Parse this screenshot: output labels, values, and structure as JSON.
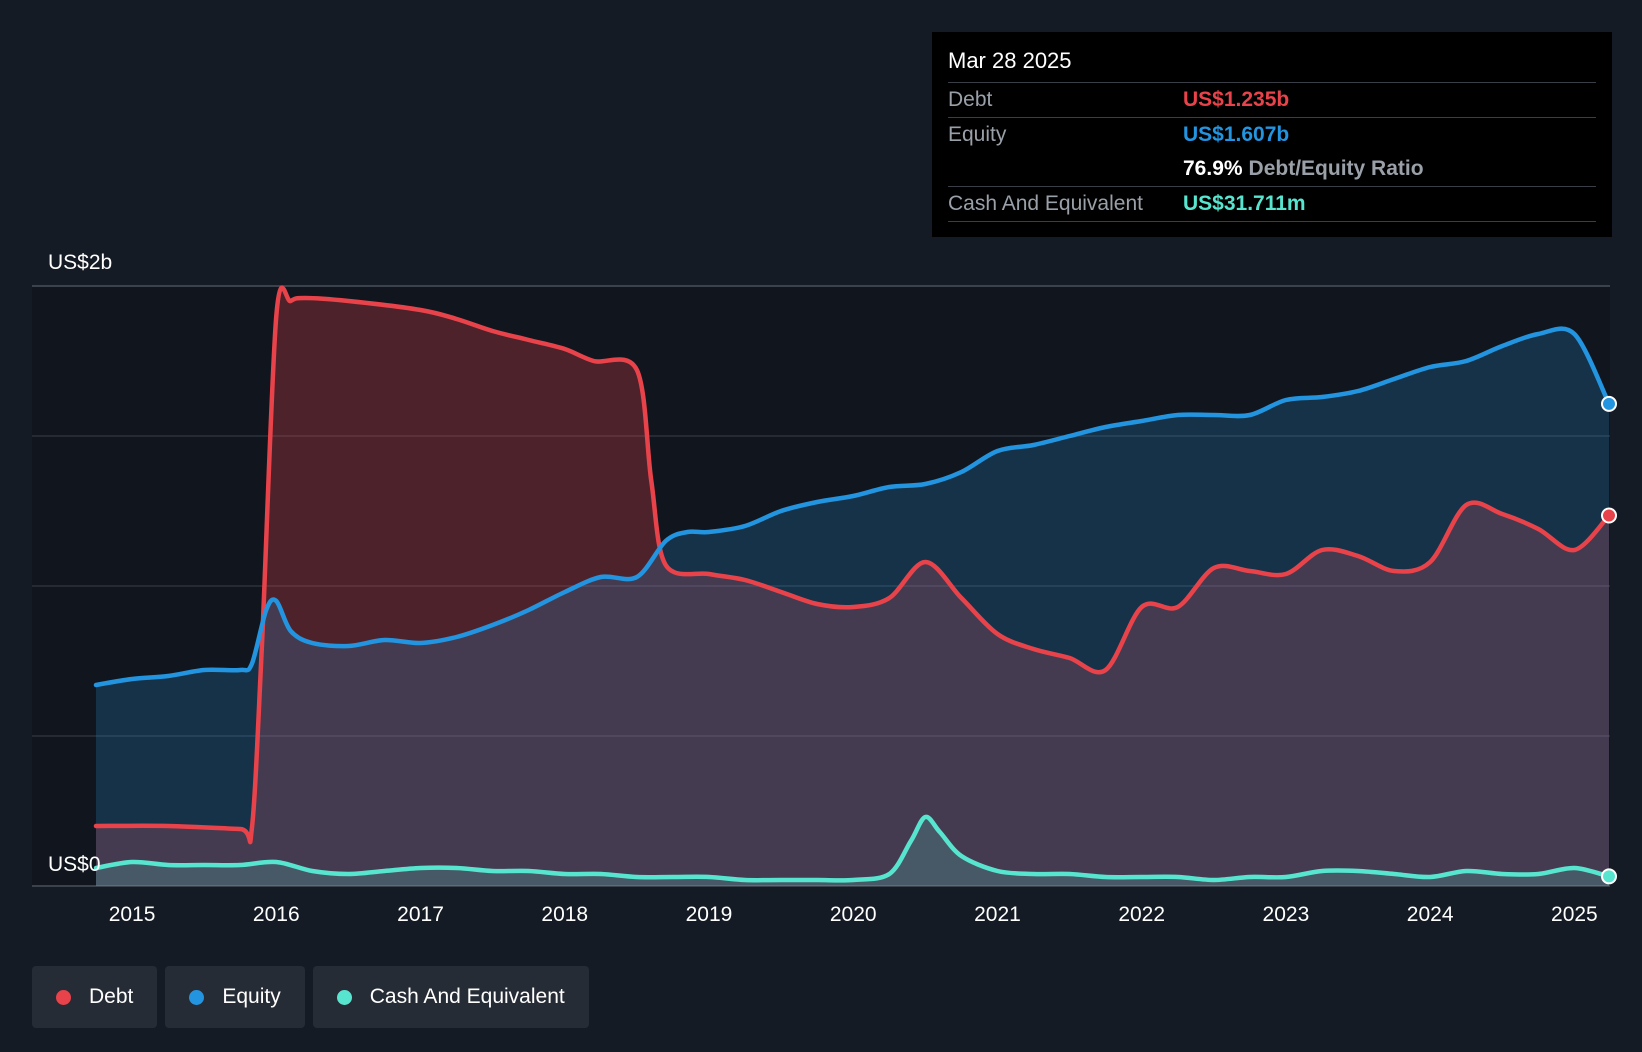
{
  "tooltip": {
    "date": "Mar 28 2025",
    "debt_label": "Debt",
    "debt_value": "US$1.235b",
    "equity_label": "Equity",
    "equity_value": "US$1.607b",
    "ratio_value": "76.9%",
    "ratio_label": "Debt/Equity Ratio",
    "cash_label": "Cash And Equivalent",
    "cash_value": "US$31.711m"
  },
  "legend": {
    "debt": "Debt",
    "equity": "Equity",
    "cash": "Cash And Equivalent"
  },
  "colors": {
    "debt": "#e8434a",
    "equity": "#2394df",
    "cash": "#58e5cf"
  },
  "chart_data": {
    "type": "area",
    "ylabel_top": "US$2b",
    "ylabel_bottom": "US$0",
    "ylim": [
      0,
      2
    ],
    "y_unit": "billion USD",
    "xlim": [
      2014.75,
      2025.24
    ],
    "x_ticks": [
      "2015",
      "2016",
      "2017",
      "2018",
      "2019",
      "2020",
      "2021",
      "2022",
      "2023",
      "2024",
      "2025"
    ],
    "grid": true,
    "legend_position": "bottom-left",
    "series": [
      {
        "name": "Debt",
        "x": [
          2014.75,
          2015.25,
          2015.75,
          2015.83,
          2015.9,
          2016.0,
          2016.1,
          2016.2,
          2016.5,
          2017.0,
          2017.25,
          2017.5,
          2017.75,
          2018.0,
          2018.2,
          2018.5,
          2018.6,
          2018.7,
          2019.0,
          2019.25,
          2019.5,
          2019.75,
          2020.0,
          2020.25,
          2020.5,
          2020.75,
          2021.0,
          2021.25,
          2021.5,
          2021.75,
          2022.0,
          2022.25,
          2022.5,
          2022.75,
          2023.0,
          2023.25,
          2023.5,
          2023.75,
          2024.0,
          2024.25,
          2024.5,
          2024.75,
          2025.0,
          2025.24
        ],
        "values": [
          0.2,
          0.2,
          0.19,
          0.19,
          0.8,
          1.9,
          1.95,
          1.96,
          1.95,
          1.92,
          1.89,
          1.85,
          1.82,
          1.79,
          1.75,
          1.72,
          1.35,
          1.07,
          1.04,
          1.02,
          0.98,
          0.94,
          0.93,
          0.96,
          1.08,
          0.96,
          0.84,
          0.79,
          0.76,
          0.72,
          0.93,
          0.93,
          1.06,
          1.05,
          1.04,
          1.12,
          1.1,
          1.05,
          1.08,
          1.27,
          1.24,
          1.19,
          1.12,
          1.235
        ]
      },
      {
        "name": "Equity",
        "x": [
          2014.75,
          2015.0,
          2015.25,
          2015.5,
          2015.75,
          2015.83,
          2015.93,
          2016.0,
          2016.1,
          2016.25,
          2016.5,
          2016.75,
          2017.0,
          2017.25,
          2017.5,
          2017.75,
          2018.0,
          2018.25,
          2018.5,
          2018.7,
          2018.85,
          2019.0,
          2019.25,
          2019.5,
          2019.75,
          2020.0,
          2020.25,
          2020.5,
          2020.75,
          2021.0,
          2021.25,
          2021.5,
          2021.75,
          2022.0,
          2022.25,
          2022.5,
          2022.75,
          2023.0,
          2023.25,
          2023.5,
          2023.75,
          2024.0,
          2024.25,
          2024.5,
          2024.75,
          2025.0,
          2025.24
        ],
        "values": [
          0.67,
          0.69,
          0.7,
          0.72,
          0.72,
          0.74,
          0.92,
          0.95,
          0.85,
          0.81,
          0.8,
          0.82,
          0.81,
          0.83,
          0.87,
          0.92,
          0.98,
          1.03,
          1.03,
          1.15,
          1.18,
          1.18,
          1.2,
          1.25,
          1.28,
          1.3,
          1.33,
          1.34,
          1.38,
          1.45,
          1.47,
          1.5,
          1.53,
          1.55,
          1.57,
          1.57,
          1.57,
          1.62,
          1.63,
          1.65,
          1.69,
          1.73,
          1.75,
          1.8,
          1.84,
          1.84,
          1.607
        ]
      },
      {
        "name": "Cash And Equivalent",
        "x": [
          2014.75,
          2015.0,
          2015.25,
          2015.5,
          2015.75,
          2016.0,
          2016.25,
          2016.5,
          2016.75,
          2017.0,
          2017.25,
          2017.5,
          2017.75,
          2018.0,
          2018.25,
          2018.5,
          2018.75,
          2019.0,
          2019.25,
          2019.5,
          2019.75,
          2020.0,
          2020.25,
          2020.4,
          2020.5,
          2020.6,
          2020.75,
          2021.0,
          2021.25,
          2021.5,
          2021.75,
          2022.0,
          2022.25,
          2022.5,
          2022.75,
          2023.0,
          2023.25,
          2023.5,
          2023.75,
          2024.0,
          2024.25,
          2024.5,
          2024.75,
          2025.0,
          2025.24
        ],
        "values": [
          0.06,
          0.08,
          0.07,
          0.07,
          0.07,
          0.08,
          0.05,
          0.04,
          0.05,
          0.06,
          0.06,
          0.05,
          0.05,
          0.04,
          0.04,
          0.03,
          0.03,
          0.03,
          0.02,
          0.02,
          0.02,
          0.02,
          0.04,
          0.15,
          0.23,
          0.18,
          0.1,
          0.05,
          0.04,
          0.04,
          0.03,
          0.03,
          0.03,
          0.02,
          0.03,
          0.03,
          0.05,
          0.05,
          0.04,
          0.03,
          0.05,
          0.04,
          0.04,
          0.06,
          0.032
        ]
      }
    ]
  }
}
